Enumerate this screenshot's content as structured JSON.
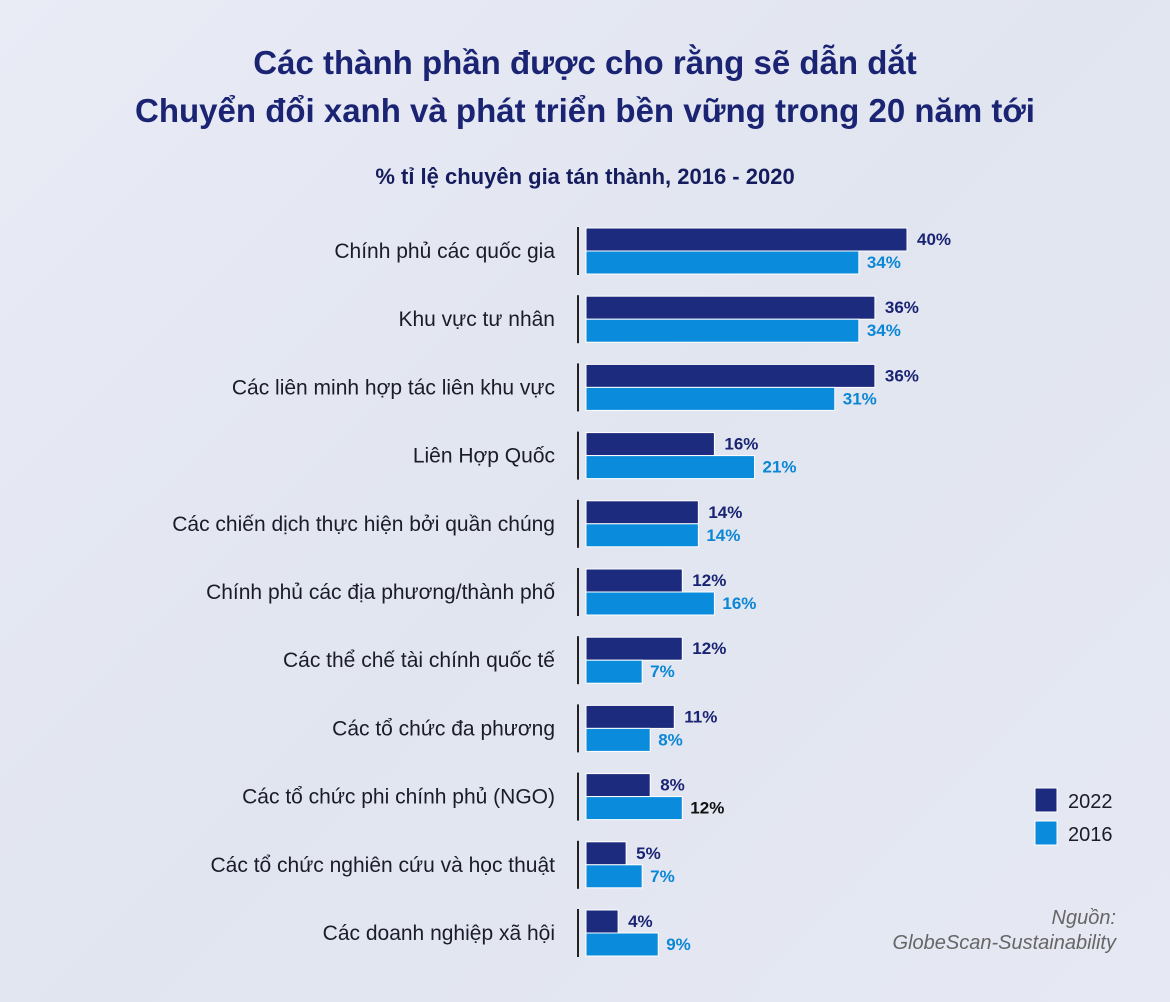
{
  "chart_data": {
    "type": "bar",
    "orientation": "horizontal",
    "title": [
      "Các thành phần được cho rằng sẽ dẫn dắt",
      "Chuyển đổi xanh và phát triển bền vững trong 20 năm tới"
    ],
    "subtitle": "% tỉ lệ chuyên gia tán thành, 2016 - 2020",
    "categories": [
      "Chính phủ các quốc gia",
      "Khu vực tư nhân",
      "Các liên minh hợp tác liên khu vực",
      "Liên Hợp Quốc",
      "Các chiến dịch thực hiện bởi quần chúng",
      "Chính phủ các địa phương/thành phố",
      "Các thể chế tài chính quốc tế",
      "Các tổ chức đa phương",
      "Các tổ chức phi chính phủ (NGO)",
      "Các tổ chức nghiên cứu và học thuật",
      "Các doanh nghiệp xã hội"
    ],
    "series": [
      {
        "name": "2022",
        "color": "#1c2b7e",
        "label_color": "#1a2473",
        "values": [
          40,
          36,
          36,
          16,
          14,
          12,
          12,
          11,
          8,
          5,
          4
        ],
        "labels": [
          "40%",
          "36%",
          "36%",
          "16%",
          "14%",
          "12%",
          "12%",
          "11%",
          "8%",
          "5%",
          "4%"
        ]
      },
      {
        "name": "2016",
        "color": "#0a8bdb",
        "label_color": "#0a87d6",
        "values": [
          34,
          34,
          31,
          21,
          14,
          16,
          7,
          8,
          12,
          7,
          9
        ],
        "labels": [
          "34%",
          "34%",
          "31%",
          "21%",
          "14%",
          "16%",
          "7%",
          "8%",
          "12%",
          "7%",
          "9%"
        ],
        "label_color_exceptions": {
          "8": "#111111"
        }
      }
    ],
    "xlim": [
      0,
      40
    ],
    "grid": false,
    "legend_position": "right",
    "unit": "%"
  },
  "source": {
    "line1": "Nguồn:",
    "line2": "GlobeScan-Sustainability"
  }
}
